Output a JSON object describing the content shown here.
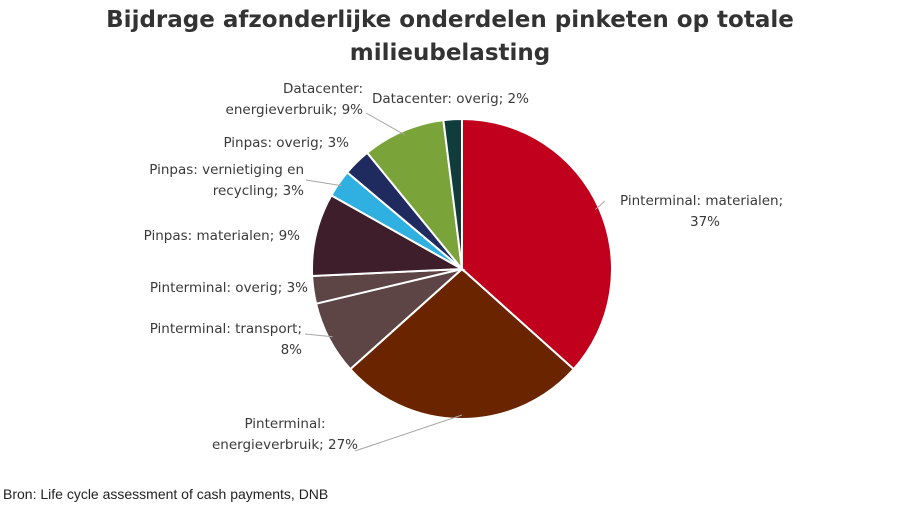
{
  "chart_data": {
    "type": "pie",
    "title_line1": "Bijdrage afzonderlijke onderdelen pinketen op totale",
    "title_line2": "milieubelasting",
    "slices": [
      {
        "label_lines": [
          "Pinterminal: materialen;",
          "37%"
        ],
        "value": 37,
        "color": "#c0001c"
      },
      {
        "label_lines": [
          "Pinterminal:",
          "energieverbruik; 27%"
        ],
        "value": 27,
        "color": "#6b2400"
      },
      {
        "label_lines": [
          "Pinterminal:  transport;",
          "8%"
        ],
        "value": 8,
        "color": "#5c4544"
      },
      {
        "label_lines": [
          "Pinterminal: overig; 3%"
        ],
        "value": 3,
        "color": "#5c4544"
      },
      {
        "label_lines": [
          "Pinpas: materialen; 9%"
        ],
        "value": 9,
        "color": "#3e1e2b"
      },
      {
        "label_lines": [
          "Pinpas: vernietiging en",
          "recycling; 3%"
        ],
        "value": 3,
        "color": "#2fb0e0"
      },
      {
        "label_lines": [
          "Pinpas: overig; 3%"
        ],
        "value": 3,
        "color": "#1f2a5e"
      },
      {
        "label_lines": [
          "Datacenter:",
          "energieverbruik; 9%"
        ],
        "value": 9,
        "color": "#7aa33a"
      },
      {
        "label_lines": [
          "Datacenter: overig; 2%"
        ],
        "value": 2,
        "color": "#0e3d3c"
      }
    ]
  },
  "source": "Bron: Life cycle assessment of cash payments, DNB"
}
